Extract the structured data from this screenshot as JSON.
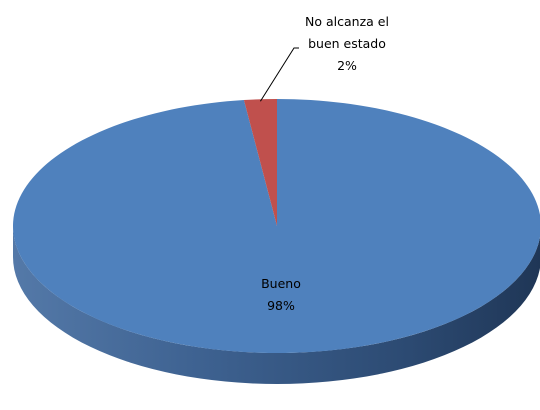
{
  "chart_data": {
    "type": "pie",
    "style": "3d",
    "title": "",
    "categories": [
      "Bueno",
      "No alcanza el buen estado"
    ],
    "values": [
      98,
      2
    ],
    "unit": "%",
    "colors": [
      "#4F81BD",
      "#C0504D"
    ],
    "labels": [
      {
        "lines": [
          "Bueno"
        ],
        "pct": "98%"
      },
      {
        "lines": [
          "No alcanza el",
          "buen estado"
        ],
        "pct": "2%"
      }
    ],
    "legend": "none"
  }
}
